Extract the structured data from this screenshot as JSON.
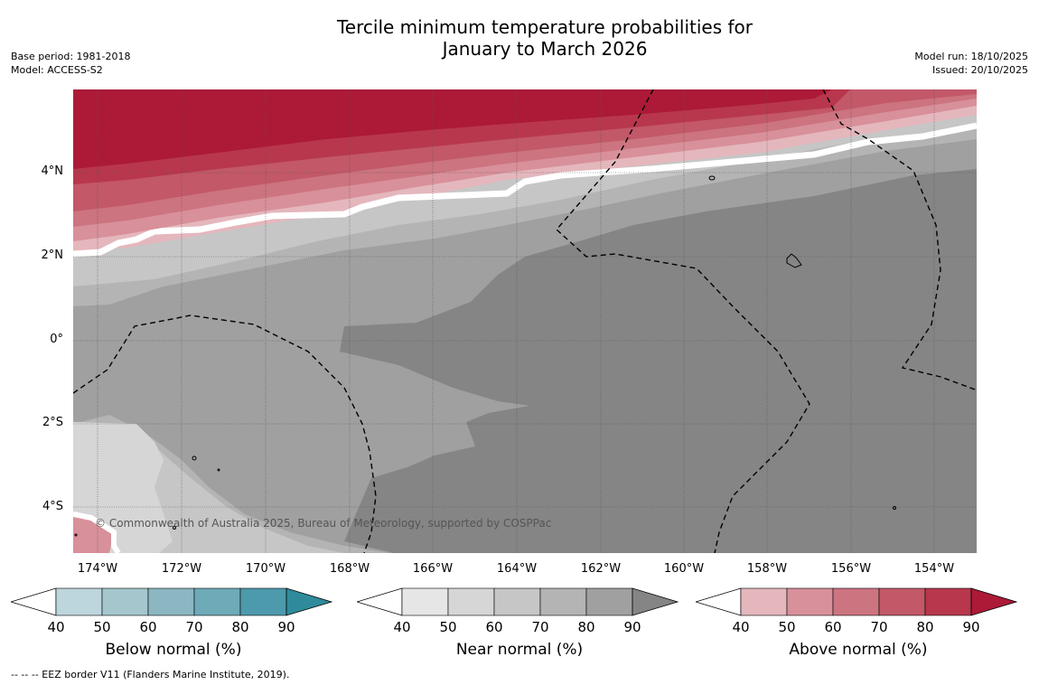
{
  "title_line1": "Tercile minimum temperature probabilities for",
  "title_line2": "January to March 2026",
  "meta_left": {
    "base_period": "Base period: 1981-2018",
    "model": "Model: ACCESS-S2"
  },
  "meta_right": {
    "model_run": "Model run: 18/10/2025",
    "issued": "Issued: 20/10/2025"
  },
  "map": {
    "lat_labels": [
      "4°N",
      "2°N",
      "0°",
      "2°S",
      "4°S"
    ],
    "lon_labels": [
      "174°W",
      "172°W",
      "170°W",
      "168°W",
      "166°W",
      "164°W",
      "162°W",
      "160°W",
      "158°W",
      "156°W",
      "154°W"
    ],
    "copyright": "© Commonwealth of Australia 2025, Bureau of Meteorology, supported by COSPPac"
  },
  "colorbars": [
    {
      "title": "Below normal (%)",
      "ticks": [
        "40",
        "50",
        "60",
        "70",
        "80",
        "90"
      ],
      "colors": [
        "#bdd5dc",
        "#a5c6cd",
        "#8bb6c2",
        "#6eaab7",
        "#4c9aab",
        "#2f8b9b"
      ]
    },
    {
      "title": "Near normal (%)",
      "ticks": [
        "40",
        "50",
        "60",
        "70",
        "80",
        "90"
      ],
      "colors": [
        "#e6e6e6",
        "#d6d6d6",
        "#c6c6c6",
        "#b4b4b4",
        "#a0a0a0",
        "#858585"
      ]
    },
    {
      "title": "Above normal (%)",
      "ticks": [
        "40",
        "50",
        "60",
        "70",
        "80",
        "90"
      ],
      "colors": [
        "#e4b7bd",
        "#d8909a",
        "#cc7480",
        "#c25868",
        "#b8374d",
        "#ac1a37"
      ]
    }
  ],
  "footer": "-- -- -- EEZ border V11 (Flanders Marine Institute, 2019)."
}
